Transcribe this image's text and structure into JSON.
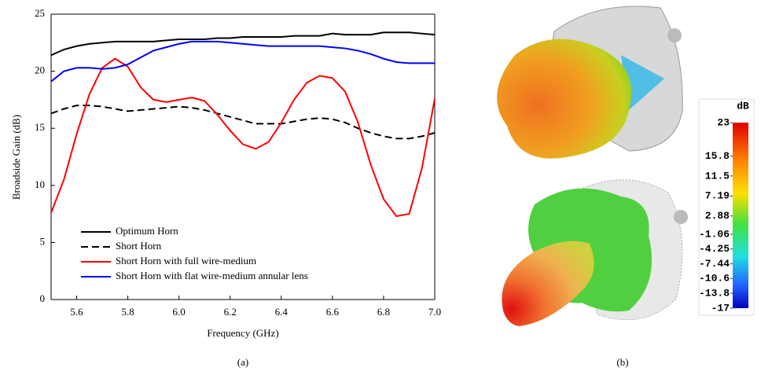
{
  "chart_data": {
    "type": "line",
    "xlabel": "Frequency (GHz)",
    "ylabel": "Broadside Gain (dB)",
    "x": [
      5.5,
      5.55,
      5.6,
      5.65,
      5.7,
      5.75,
      5.8,
      5.85,
      5.9,
      5.95,
      6.0,
      6.05,
      6.1,
      6.15,
      6.2,
      6.25,
      6.3,
      6.35,
      6.4,
      6.45,
      6.5,
      6.55,
      6.6,
      6.65,
      6.7,
      6.75,
      6.8,
      6.85,
      6.9,
      6.95,
      7.0
    ],
    "series": [
      {
        "name": "Optimum Horn",
        "color": "#000000",
        "dash": false,
        "values": [
          21.4,
          21.9,
          22.2,
          22.4,
          22.5,
          22.6,
          22.6,
          22.6,
          22.6,
          22.7,
          22.8,
          22.8,
          22.8,
          22.9,
          22.9,
          23.0,
          23.0,
          23.0,
          23.0,
          23.1,
          23.1,
          23.1,
          23.3,
          23.2,
          23.2,
          23.2,
          23.4,
          23.4,
          23.4,
          23.3,
          23.2
        ]
      },
      {
        "name": "Short Horn",
        "color": "#000000",
        "dash": true,
        "values": [
          16.3,
          16.7,
          17.0,
          17.0,
          16.9,
          16.7,
          16.5,
          16.6,
          16.7,
          16.8,
          16.9,
          16.8,
          16.6,
          16.3,
          16.0,
          15.7,
          15.4,
          15.4,
          15.4,
          15.6,
          15.8,
          15.9,
          15.8,
          15.5,
          15.0,
          14.6,
          14.3,
          14.1,
          14.1,
          14.3,
          14.6
        ]
      },
      {
        "name": "Short Horn with full wire-medium",
        "color": "#ff0000",
        "dash": false,
        "values": [
          7.6,
          10.5,
          14.5,
          18.0,
          20.3,
          21.1,
          20.4,
          18.6,
          17.5,
          17.3,
          17.5,
          17.7,
          17.4,
          16.2,
          14.8,
          13.6,
          13.2,
          13.8,
          15.5,
          17.5,
          19.0,
          19.6,
          19.4,
          18.2,
          15.5,
          11.8,
          8.8,
          7.3,
          7.5,
          11.5,
          17.6
        ]
      },
      {
        "name": "Short Horn with flat wire-medium annular lens",
        "color": "#0000ff",
        "dash": false,
        "values": [
          19.1,
          20.0,
          20.3,
          20.3,
          20.2,
          20.3,
          20.6,
          21.2,
          21.8,
          22.1,
          22.4,
          22.6,
          22.6,
          22.6,
          22.5,
          22.4,
          22.3,
          22.2,
          22.2,
          22.2,
          22.2,
          22.2,
          22.1,
          22.0,
          21.8,
          21.5,
          21.1,
          20.8,
          20.7,
          20.7,
          20.7
        ]
      }
    ],
    "xlim": [
      5.5,
      7.0
    ],
    "ylim": [
      0,
      25
    ],
    "xticks": [
      5.6,
      5.8,
      {
        "value": 6,
        "label": "6.0"
      },
      6.2,
      6.4,
      6.6,
      6.8,
      {
        "value": 7,
        "label": "7.0"
      }
    ],
    "yticks": [
      0,
      5,
      10,
      15,
      20,
      25
    ],
    "grid": false,
    "legend": "lower left"
  },
  "colorbar": {
    "title": "dB",
    "lim": [
      -17,
      23
    ],
    "ticks": [
      23,
      15.8,
      11.5,
      7.19,
      2.88,
      -1.06,
      -4.25,
      -7.44,
      -10.6,
      -13.8,
      -17
    ]
  },
  "captions": [
    "(a)",
    "(b)"
  ]
}
